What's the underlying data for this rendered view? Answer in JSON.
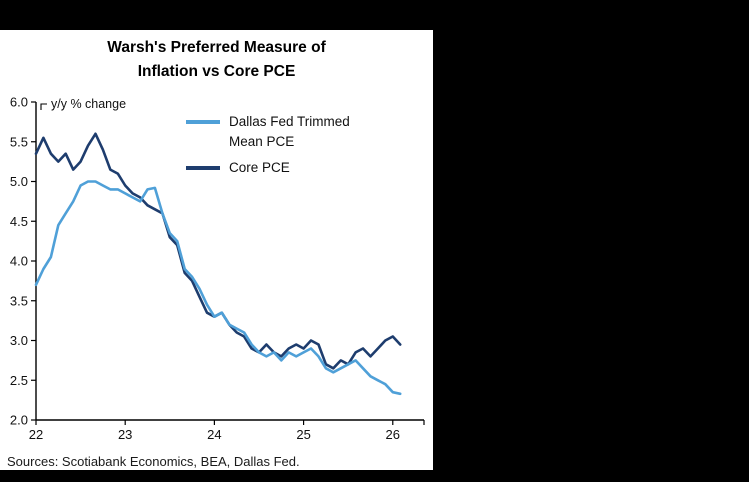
{
  "chart": {
    "title_lines": [
      "Warsh's Preferred Measure of",
      "Inflation vs Core PCE"
    ],
    "axis_annotation": "y/y % change",
    "source": "Sources: Scotiabank Economics, BEA, Dallas Fed.",
    "legend": [
      {
        "label_lines": [
          "Dallas Fed Trimmed",
          "Mean PCE"
        ],
        "color": "#4FA0D8"
      },
      {
        "label_lines": [
          "Core PCE",
          ""
        ],
        "color": "#1E3D6E"
      }
    ],
    "colors": {
      "background": "#000000",
      "panel": "#ffffff",
      "axis": "#000000"
    }
  },
  "chart_data": {
    "type": "line",
    "title": "Warsh's Preferred Measure of Inflation vs Core PCE",
    "xlabel": "",
    "ylabel": "y/y % change",
    "ylim": [
      2.0,
      6.0
    ],
    "yticks": [
      6.0,
      5.5,
      5.0,
      4.5,
      4.0,
      3.5,
      3.0,
      2.5,
      2.0
    ],
    "xticks": [
      {
        "t": 2022,
        "label": "22"
      },
      {
        "t": 2023,
        "label": "23"
      },
      {
        "t": 2024,
        "label": "24"
      },
      {
        "t": 2025,
        "label": "25"
      },
      {
        "t": 2026,
        "label": "26"
      }
    ],
    "x_start": 2022.0,
    "x_interval_years": 0.0833333,
    "x_axis_end": 2026.35,
    "grid": false,
    "legend_position": "upper-center-inside",
    "series": [
      {
        "name": "Dallas Fed Trimmed Mean PCE",
        "color": "#4FA0D8",
        "values": [
          3.7,
          3.9,
          4.05,
          4.45,
          4.6,
          4.75,
          4.95,
          5.0,
          5.0,
          4.95,
          4.9,
          4.9,
          4.85,
          4.8,
          4.75,
          4.9,
          4.92,
          4.6,
          4.35,
          4.25,
          3.9,
          3.8,
          3.65,
          3.45,
          3.3,
          3.35,
          3.2,
          3.15,
          3.1,
          2.95,
          2.85,
          2.8,
          2.85,
          2.75,
          2.85,
          2.8,
          2.85,
          2.9,
          2.8,
          2.65,
          2.6,
          2.65,
          2.7,
          2.75,
          2.65,
          2.55,
          2.5,
          2.45,
          2.35,
          2.33
        ]
      },
      {
        "name": "Core PCE",
        "color": "#1E3D6E",
        "values": [
          5.35,
          5.55,
          5.35,
          5.25,
          5.35,
          5.15,
          5.25,
          5.45,
          5.6,
          5.4,
          5.15,
          5.1,
          4.95,
          4.85,
          4.8,
          4.7,
          4.65,
          4.6,
          4.3,
          4.2,
          3.85,
          3.75,
          3.55,
          3.35,
          3.3,
          3.35,
          3.2,
          3.1,
          3.05,
          2.9,
          2.85,
          2.95,
          2.85,
          2.8,
          2.9,
          2.95,
          2.9,
          3.0,
          2.95,
          2.7,
          2.65,
          2.75,
          2.7,
          2.85,
          2.9,
          2.8,
          2.9,
          3.0,
          3.05,
          2.95
        ]
      }
    ]
  }
}
